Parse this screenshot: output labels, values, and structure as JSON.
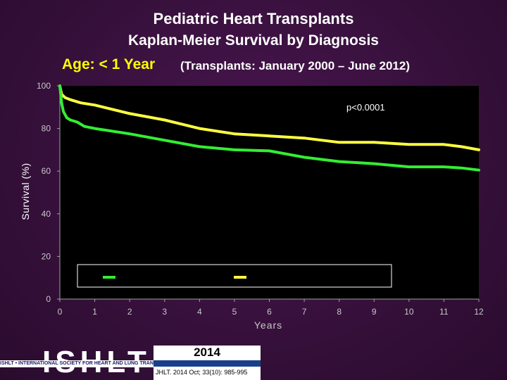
{
  "title": "Pediatric Heart Transplants",
  "subtitle": "Kaplan-Meier Survival by Diagnosis",
  "age_label": "Age: < 1 Year",
  "period_label": "(Transplants: January 2000 – June 2012)",
  "colors": {
    "yellow": "#ffff40",
    "green": "#33ee33",
    "axis": "#a0a0a0"
  },
  "chart_data": {
    "type": "line",
    "title": "Pediatric Heart Transplants",
    "xlabel": "Years",
    "ylabel": "Survival (%)",
    "annotation": "p<0.0001",
    "xlim": [
      0,
      12
    ],
    "ylim": [
      0,
      100
    ],
    "x_ticks": [
      "0",
      "1",
      "2",
      "3",
      "4",
      "5",
      "6",
      "7",
      "8",
      "9",
      "10",
      "11",
      "12"
    ],
    "y_ticks": [
      "0",
      "20",
      "40",
      "60",
      "80",
      "100"
    ],
    "legend": {
      "position": "lower-center",
      "entries": [
        "",
        ""
      ]
    },
    "series": [
      {
        "color": "#ffff40",
        "x": [
          0,
          0.05,
          0.15,
          0.3,
          0.6,
          1,
          2,
          3,
          4,
          5,
          6,
          7,
          8,
          9,
          10,
          11,
          11.5,
          12
        ],
        "y": [
          100,
          96,
          94.5,
          93.5,
          92,
          91,
          87,
          84,
          80,
          77.5,
          76.5,
          75.5,
          73.5,
          73.5,
          72.5,
          72.5,
          71.5,
          70
        ]
      },
      {
        "color": "#33ee33",
        "x": [
          0,
          0.05,
          0.1,
          0.2,
          0.3,
          0.5,
          0.7,
          1,
          2,
          3,
          4,
          5,
          6,
          7,
          8,
          9,
          10,
          11,
          11.5,
          12
        ],
        "y": [
          100,
          92,
          88,
          85,
          84,
          83,
          81,
          80,
          77.5,
          74.5,
          71.5,
          70,
          69.5,
          66.5,
          64.5,
          63.5,
          62,
          62,
          61.5,
          60.5
        ]
      }
    ]
  },
  "footer": {
    "logo_text": "ISHLT",
    "logo_sub": "ISHLT • INTERNATIONAL SOCIETY FOR HEART AND LUNG TRANSPLANTATION",
    "year": "2014",
    "citation": "JHLT. 2014 Oct; 33(10): 985-995"
  }
}
